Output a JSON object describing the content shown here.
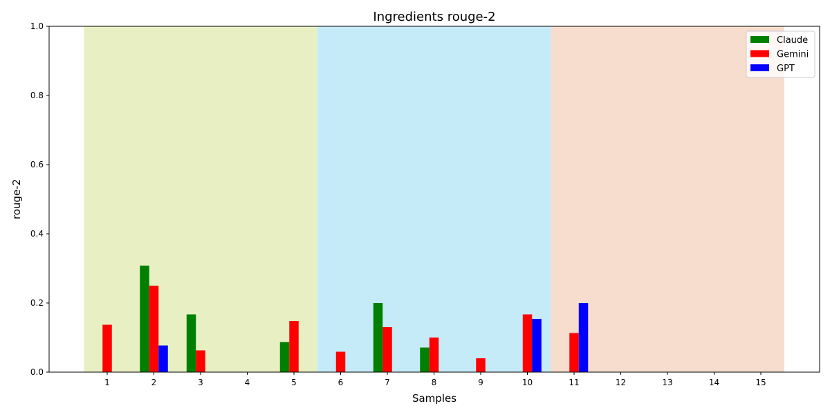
{
  "chart_data": {
    "type": "bar",
    "title": "Ingredients rouge-2",
    "xlabel": "Samples",
    "ylabel": "rouge-2",
    "ylim": [
      0,
      1
    ],
    "yticks": [
      "0.0",
      "0.2",
      "0.4",
      "0.6",
      "0.8",
      "1.0"
    ],
    "categories": [
      "1",
      "2",
      "3",
      "4",
      "5",
      "6",
      "7",
      "8",
      "9",
      "10",
      "11",
      "12",
      "13",
      "14",
      "15"
    ],
    "series": [
      {
        "name": "Claude",
        "color": "#008000",
        "values": [
          0,
          0.308,
          0.167,
          0,
          0.087,
          0,
          0.2,
          0.071,
          0,
          0,
          0,
          0,
          0,
          0,
          0
        ]
      },
      {
        "name": "Gemini",
        "color": "#ff0000",
        "values": [
          0.137,
          0.25,
          0.063,
          0,
          0.148,
          0.059,
          0.13,
          0.1,
          0.04,
          0.167,
          0.113,
          0,
          0,
          0,
          0
        ]
      },
      {
        "name": "GPT",
        "color": "#0000ff",
        "values": [
          0,
          0.077,
          0,
          0,
          0,
          0,
          0,
          0,
          0,
          0.154,
          0.2,
          0,
          0,
          0,
          0
        ]
      }
    ],
    "background_bands": [
      {
        "from": "1",
        "to": "5",
        "color": "#e8f0c3"
      },
      {
        "from": "6",
        "to": "10",
        "color": "#c5ebf8"
      },
      {
        "from": "11",
        "to": "15",
        "color": "#f6ddcd"
      }
    ],
    "legend_position": "top-right",
    "grid": false
  }
}
